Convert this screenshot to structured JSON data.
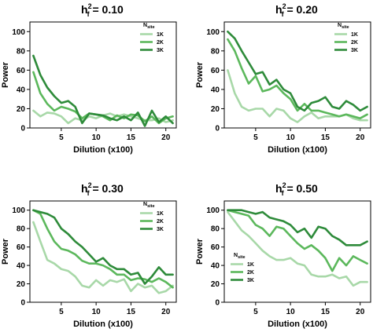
{
  "figure": {
    "series_names": [
      "1K",
      "2K",
      "3K"
    ],
    "legend_title_main": "N",
    "legend_title_sub": "site",
    "colors": {
      "1K": "#a8d8a8",
      "2K": "#5cb85c",
      "3K": "#2e8b3a"
    },
    "legend_placement": [
      "top-right",
      "top-right",
      "top-right",
      "bottom-left"
    ]
  },
  "chart_data": [
    {
      "type": "line",
      "title": "h",
      "title_sup": "2",
      "title_sub": "f",
      "title_value": " = 0.10",
      "xlabel": "Dilution (x100)",
      "ylabel": "Power",
      "xlim": [
        0.5,
        21.5
      ],
      "ylim": [
        0,
        110
      ],
      "xticks": [
        5,
        10,
        15,
        20
      ],
      "yticks": [
        0,
        20,
        40,
        60,
        80,
        100
      ],
      "x": [
        1,
        2,
        3,
        4,
        5,
        6,
        7,
        8,
        9,
        10,
        11,
        12,
        13,
        14,
        15,
        16,
        17,
        18,
        19,
        20,
        21
      ],
      "series": [
        {
          "name": "1K",
          "values": [
            18,
            12,
            16,
            15,
            12,
            5,
            10,
            8,
            12,
            10,
            13,
            15,
            12,
            14,
            12,
            10,
            8,
            8,
            10,
            6,
            8
          ]
        },
        {
          "name": "2K",
          "values": [
            58,
            36,
            25,
            18,
            22,
            20,
            17,
            10,
            15,
            14,
            12,
            8,
            13,
            10,
            14,
            13,
            7,
            12,
            5,
            10,
            12
          ]
        },
        {
          "name": "3K",
          "values": [
            75,
            55,
            42,
            33,
            26,
            28,
            22,
            5,
            15,
            14,
            13,
            10,
            8,
            12,
            8,
            16,
            2,
            18,
            6,
            12,
            5
          ]
        }
      ]
    },
    {
      "type": "line",
      "title": "h",
      "title_sup": "2",
      "title_sub": "f",
      "title_value": " = 0.20",
      "xlabel": "Dilution (x100)",
      "ylabel": "Power",
      "xlim": [
        0.5,
        21.5
      ],
      "ylim": [
        0,
        110
      ],
      "xticks": [
        5,
        10,
        15,
        20
      ],
      "yticks": [
        0,
        20,
        40,
        60,
        80,
        100
      ],
      "x": [
        1,
        2,
        3,
        4,
        5,
        6,
        7,
        8,
        9,
        10,
        11,
        12,
        13,
        14,
        15,
        16,
        17,
        18,
        19,
        20,
        21
      ],
      "series": [
        {
          "name": "1K",
          "values": [
            60,
            36,
            22,
            18,
            20,
            20,
            12,
            20,
            18,
            10,
            6,
            12,
            16,
            10,
            12,
            12,
            12,
            14,
            10,
            8,
            8
          ]
        },
        {
          "name": "2K",
          "values": [
            92,
            80,
            62,
            46,
            54,
            38,
            40,
            44,
            36,
            30,
            18,
            25,
            18,
            18,
            16,
            14,
            12,
            14,
            12,
            10,
            14
          ]
        },
        {
          "name": "3K",
          "values": [
            100,
            93,
            80,
            68,
            56,
            58,
            45,
            50,
            40,
            36,
            22,
            18,
            26,
            28,
            32,
            22,
            20,
            28,
            24,
            18,
            22
          ]
        }
      ]
    },
    {
      "type": "line",
      "title": "h",
      "title_sup": "2",
      "title_sub": "f",
      "title_value": " = 0.30",
      "xlabel": "Dilution (x100)",
      "ylabel": "Power",
      "xlim": [
        0.5,
        21.5
      ],
      "ylim": [
        0,
        110
      ],
      "xticks": [
        5,
        10,
        15,
        20
      ],
      "yticks": [
        0,
        20,
        40,
        60,
        80,
        100
      ],
      "x": [
        1,
        2,
        3,
        4,
        5,
        6,
        7,
        8,
        9,
        10,
        11,
        12,
        13,
        14,
        15,
        16,
        17,
        18,
        19,
        20,
        21
      ],
      "series": [
        {
          "name": "1K",
          "values": [
            87,
            66,
            46,
            42,
            36,
            34,
            28,
            18,
            16,
            24,
            18,
            24,
            22,
            25,
            12,
            20,
            16,
            18,
            10,
            12,
            18
          ]
        },
        {
          "name": "2K",
          "values": [
            100,
            96,
            80,
            66,
            58,
            56,
            52,
            45,
            42,
            42,
            40,
            36,
            30,
            30,
            24,
            26,
            25,
            22,
            26,
            22,
            16
          ]
        },
        {
          "name": "3K",
          "values": [
            100,
            98,
            96,
            92,
            80,
            74,
            66,
            60,
            52,
            44,
            48,
            40,
            36,
            36,
            30,
            32,
            20,
            28,
            38,
            30,
            30
          ]
        }
      ]
    },
    {
      "type": "line",
      "title": "h",
      "title_sup": "2",
      "title_sub": "f",
      "title_value": " = 0.50",
      "xlabel": "Dilution (x100)",
      "ylabel": "Power",
      "xlim": [
        0.5,
        21.5
      ],
      "ylim": [
        0,
        110
      ],
      "xticks": [
        5,
        10,
        15,
        20
      ],
      "yticks": [
        0,
        20,
        40,
        60,
        80,
        100
      ],
      "x": [
        1,
        2,
        3,
        4,
        5,
        6,
        7,
        8,
        9,
        10,
        11,
        12,
        13,
        14,
        15,
        16,
        17,
        18,
        19,
        20,
        21
      ],
      "series": [
        {
          "name": "1K",
          "values": [
            98,
            88,
            78,
            72,
            64,
            56,
            50,
            46,
            46,
            48,
            42,
            40,
            30,
            28,
            28,
            30,
            26,
            28,
            18,
            22,
            22
          ]
        },
        {
          "name": "2K",
          "values": [
            100,
            98,
            96,
            94,
            84,
            80,
            72,
            82,
            80,
            72,
            64,
            58,
            62,
            56,
            48,
            34,
            48,
            40,
            50,
            46,
            42
          ]
        },
        {
          "name": "3K",
          "values": [
            100,
            100,
            100,
            98,
            96,
            98,
            92,
            90,
            88,
            84,
            76,
            80,
            70,
            82,
            80,
            72,
            68,
            62,
            62,
            62,
            66
          ]
        }
      ]
    }
  ]
}
